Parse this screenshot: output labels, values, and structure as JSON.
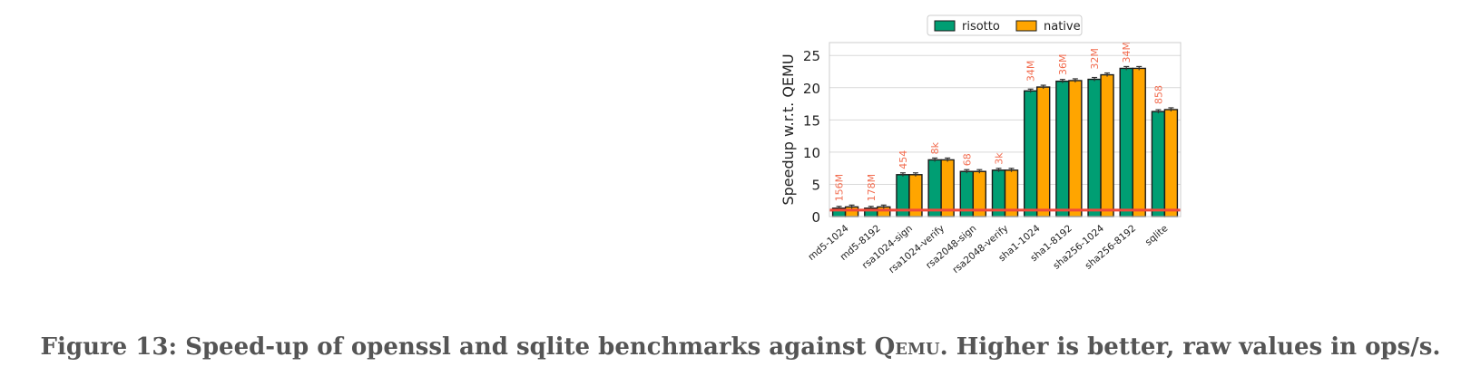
{
  "chart_data": {
    "type": "bar",
    "ylabel": "Speedup w.r.t. QEMU",
    "xlabel": "",
    "ylim": [
      0,
      27
    ],
    "yticks": [
      0,
      5,
      10,
      15,
      20,
      25
    ],
    "grid": true,
    "legend_position": "top-center",
    "baseline": 1,
    "categories": [
      "md5-1024",
      "md5-8192",
      "rsa1024-sign",
      "rsa1024-verify",
      "rsa2048-sign",
      "rsa2048-verify",
      "sha1-1024",
      "sha1-8192",
      "sha256-1024",
      "sha256-8192",
      "sqlite"
    ],
    "series": [
      {
        "name": "risotto",
        "color": "#009E73",
        "values": [
          1.3,
          1.3,
          6.5,
          8.8,
          7.0,
          7.2,
          19.5,
          21.0,
          21.3,
          23.0,
          16.3
        ]
      },
      {
        "name": "native",
        "color": "#FFA500",
        "values": [
          1.5,
          1.5,
          6.5,
          8.8,
          7.0,
          7.2,
          20.1,
          21.1,
          22.0,
          23.0,
          16.6
        ]
      }
    ],
    "annotations": [
      "156M",
      "178M",
      "454",
      "8k",
      "68",
      "3k",
      "34M",
      "36M",
      "32M",
      "34M",
      "858"
    ],
    "annotation_color": "#F26C4F",
    "baseline_color": "#F04A3A"
  },
  "caption": {
    "prefix": "Figure 13: Speed-up of openssl and sqlite benchmarks against ",
    "qemu": "Qemu",
    "suffix": ". Higher is better, raw values in ops/s."
  }
}
